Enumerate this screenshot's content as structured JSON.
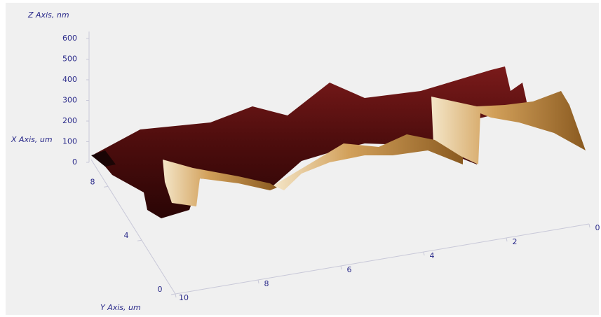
{
  "chart_data": {
    "type": "surface3d",
    "zlabel": "Z Axis, nm",
    "xlabel": "X Axis, um",
    "ylabel": "Y Axis, um",
    "zlim": [
      0,
      600
    ],
    "zticks": [
      0,
      100,
      200,
      300,
      400,
      500,
      600
    ],
    "xlim": [
      0,
      10
    ],
    "xticks": [
      0,
      4,
      8
    ],
    "ylim": [
      0,
      10
    ],
    "yticks": [
      0,
      2,
      4,
      6,
      8,
      10
    ]
  }
}
